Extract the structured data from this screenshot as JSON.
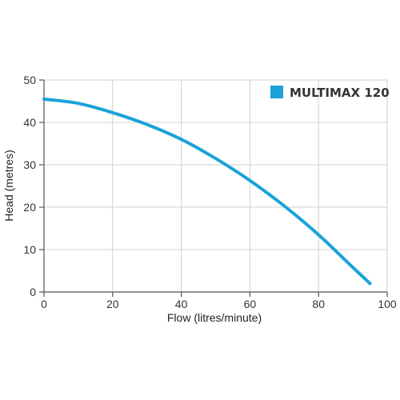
{
  "chart_data": {
    "type": "line",
    "title": "",
    "xlabel": "Flow (litres/minute)",
    "ylabel": "Head (metres)",
    "xlim": [
      0,
      100
    ],
    "ylim": [
      0,
      50
    ],
    "x_ticks": [
      0,
      20,
      40,
      60,
      80,
      100
    ],
    "y_ticks": [
      0,
      10,
      20,
      30,
      40,
      50
    ],
    "grid": true,
    "legend_position": "top-right",
    "series": [
      {
        "name": "MULTIMAX 120",
        "color": "#1aa3d9",
        "x": [
          0,
          10,
          20,
          30,
          40,
          50,
          60,
          70,
          80,
          90,
          95
        ],
        "y": [
          45.5,
          44.5,
          42.3,
          39.5,
          36,
          31.5,
          26.3,
          20.3,
          13.5,
          5.8,
          2
        ]
      }
    ]
  }
}
